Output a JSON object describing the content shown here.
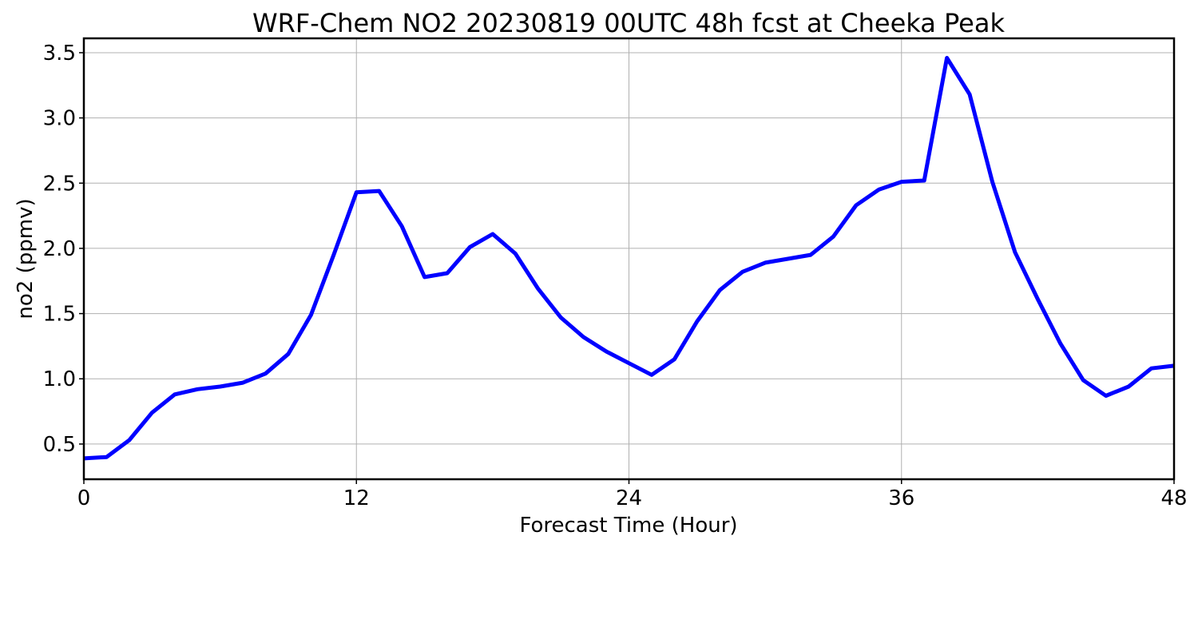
{
  "chart_data": {
    "type": "line",
    "title": "WRF-Chem NO2  20230819 00UTC 48h fcst at Cheeka Peak",
    "xlabel": "Forecast Time (Hour)",
    "ylabel": "no2  (ppmv)",
    "xlim": [
      0,
      48
    ],
    "ylim": [
      0.23,
      3.61
    ],
    "xticks": [
      0,
      12,
      24,
      36,
      48
    ],
    "xtick_labels": [
      "0",
      "12",
      "24",
      "36",
      "48"
    ],
    "yticks": [
      0.5,
      1.0,
      1.5,
      2.0,
      2.5,
      3.0,
      3.5
    ],
    "ytick_labels": [
      "0.5",
      "1.0",
      "1.5",
      "2.0",
      "2.5",
      "3.0",
      "3.5"
    ],
    "grid": true,
    "line_color": "#0000ff",
    "series": [
      {
        "x": [
          0,
          1,
          2,
          3,
          4,
          5,
          6,
          7,
          8,
          9,
          10,
          11,
          12,
          13,
          14,
          15,
          16,
          17,
          18,
          19,
          20,
          21,
          22,
          23,
          24,
          25,
          26,
          27,
          28,
          29,
          30,
          31,
          32,
          33,
          34,
          35,
          36,
          37,
          38,
          39,
          40,
          41,
          42,
          43,
          44,
          45,
          46,
          47,
          48
        ],
        "values": [
          0.39,
          0.4,
          0.53,
          0.74,
          0.88,
          0.92,
          0.94,
          0.97,
          1.04,
          1.19,
          1.49,
          1.95,
          2.43,
          2.44,
          2.17,
          1.78,
          1.81,
          2.01,
          2.11,
          1.96,
          1.69,
          1.47,
          1.32,
          1.21,
          1.12,
          1.03,
          1.15,
          1.44,
          1.68,
          1.82,
          1.89,
          1.92,
          1.95,
          2.09,
          2.33,
          2.45,
          2.51,
          2.52,
          3.46,
          3.18,
          2.51,
          1.97,
          1.61,
          1.27,
          0.99,
          0.87,
          0.94,
          1.08,
          1.1
        ]
      }
    ]
  }
}
